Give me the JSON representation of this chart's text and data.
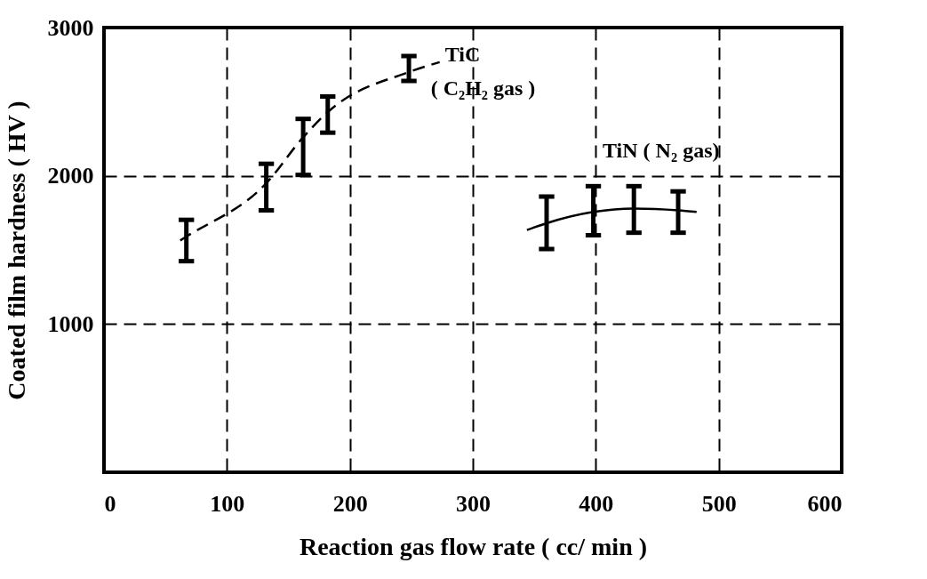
{
  "chart_data": {
    "type": "line",
    "xlabel": "Reaction  gas  flow  rate  ( cc/ min )",
    "ylabel": "Coated film hardness ( HV )",
    "xlim": [
      0,
      600
    ],
    "xticks": [
      0,
      100,
      200,
      300,
      400,
      500,
      600
    ],
    "ylim": [
      0,
      3000
    ],
    "yticks": [
      1000,
      2000,
      3000
    ],
    "grid": true,
    "marker": "none",
    "series": [
      {
        "name": "TiC",
        "color": "#000000",
        "line_style": "dashed",
        "x": [
          62,
          67,
          132,
          162,
          182,
          248,
          273
        ],
        "values": [
          1564,
          1590,
          1950,
          2260,
          2430,
          2700,
          2767
        ],
        "errors": [
          null,
          [
            1424,
            1703
          ],
          [
            1767,
            2081
          ],
          [
            2006,
            2384
          ],
          [
            2291,
            2535
          ],
          [
            2640,
            2808
          ],
          null
        ]
      },
      {
        "name": "TiN ( N₂ gas)",
        "color": "#000000",
        "line_style": "solid",
        "x": [
          344,
          360,
          398,
          431,
          467,
          482
        ],
        "values": [
          1634,
          1680,
          1756,
          1779,
          1767,
          1756
        ],
        "errors": [
          null,
          [
            1506,
            1860
          ],
          [
            1599,
            1930
          ],
          [
            1616,
            1930
          ],
          [
            1616,
            1895
          ],
          null
        ]
      }
    ],
    "legend": false,
    "annotations": [
      "( C₂H₂ gas )"
    ]
  }
}
